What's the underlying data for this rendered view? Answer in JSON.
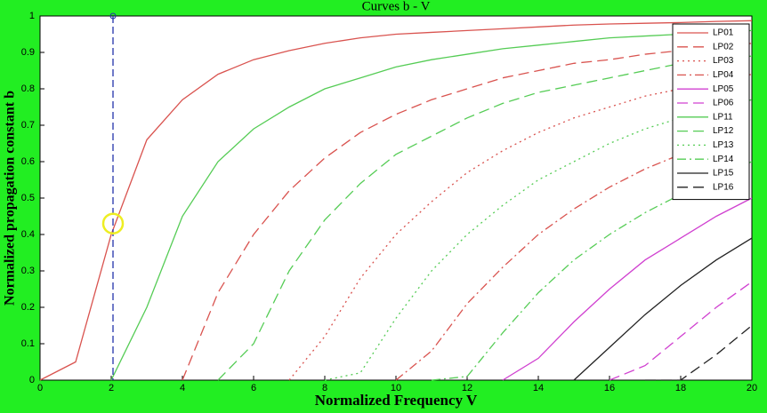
{
  "chart_data": {
    "type": "line",
    "title": "Curves b - V",
    "xlabel": "Normalized Frequency V",
    "ylabel": "Normalized propagation constant b",
    "x": [
      0,
      1,
      2,
      3,
      4,
      5,
      6,
      7,
      8,
      9,
      10,
      11,
      12,
      13,
      14,
      15,
      16,
      17,
      18,
      19,
      20
    ],
    "xlim": [
      0,
      20
    ],
    "ylim": [
      0,
      1
    ],
    "xticks": [
      0,
      2,
      4,
      6,
      8,
      10,
      12,
      14,
      16,
      18,
      20
    ],
    "yticks": [
      0,
      0.1,
      0.2,
      0.3,
      0.4,
      0.5,
      0.6,
      0.7,
      0.8,
      0.9,
      1
    ],
    "grid": false,
    "legend": "upper right",
    "series": [
      {
        "name": "LP01",
        "color": "#d9534f",
        "style": "solid",
        "values": [
          0,
          0.05,
          0.4,
          0.66,
          0.77,
          0.84,
          0.88,
          0.905,
          0.925,
          0.94,
          0.95,
          0.955,
          0.96,
          0.965,
          0.97,
          0.975,
          0.978,
          0.98,
          0.982,
          0.985,
          0.987
        ]
      },
      {
        "name": "LP02",
        "color": "#d9534f",
        "style": "dashed",
        "values": [
          null,
          null,
          null,
          null,
          0,
          0.24,
          0.4,
          0.52,
          0.61,
          0.68,
          0.73,
          0.77,
          0.8,
          0.83,
          0.85,
          0.87,
          0.88,
          0.895,
          0.905,
          0.915,
          0.925
        ]
      },
      {
        "name": "LP03",
        "color": "#d9534f",
        "style": "dotted",
        "values": [
          null,
          null,
          null,
          null,
          null,
          null,
          null,
          0,
          0.12,
          0.28,
          0.4,
          0.49,
          0.57,
          0.63,
          0.68,
          0.72,
          0.75,
          0.78,
          0.8,
          0.82,
          0.84
        ]
      },
      {
        "name": "LP04",
        "color": "#d9534f",
        "style": "dashdot",
        "values": [
          null,
          null,
          null,
          null,
          null,
          null,
          null,
          null,
          null,
          null,
          0,
          0.08,
          0.21,
          0.31,
          0.4,
          0.47,
          0.53,
          0.58,
          0.62,
          0.66,
          0.69
        ]
      },
      {
        "name": "LP05",
        "color": "#d040d0",
        "style": "solid",
        "values": [
          null,
          null,
          null,
          null,
          null,
          null,
          null,
          null,
          null,
          null,
          null,
          null,
          null,
          0,
          0.06,
          0.16,
          0.25,
          0.33,
          0.39,
          0.45,
          0.5
        ]
      },
      {
        "name": "LP06",
        "color": "#d040d0",
        "style": "dashed",
        "values": [
          null,
          null,
          null,
          null,
          null,
          null,
          null,
          null,
          null,
          null,
          null,
          null,
          null,
          null,
          null,
          null,
          0,
          0.04,
          0.12,
          0.2,
          0.27
        ]
      },
      {
        "name": "LP11",
        "color": "#55cc55",
        "style": "solid",
        "values": [
          null,
          null,
          0,
          0.2,
          0.45,
          0.6,
          0.69,
          0.75,
          0.8,
          0.83,
          0.86,
          0.88,
          0.895,
          0.91,
          0.92,
          0.93,
          0.94,
          0.945,
          0.95,
          0.955,
          0.96
        ]
      },
      {
        "name": "LP12",
        "color": "#55cc55",
        "style": "dashed",
        "values": [
          null,
          null,
          null,
          null,
          null,
          0,
          0.1,
          0.3,
          0.44,
          0.54,
          0.62,
          0.67,
          0.72,
          0.76,
          0.79,
          0.81,
          0.83,
          0.85,
          0.87,
          0.88,
          0.89
        ]
      },
      {
        "name": "LP13",
        "color": "#55cc55",
        "style": "dotted",
        "values": [
          null,
          null,
          null,
          null,
          null,
          null,
          null,
          null,
          0,
          0.02,
          0.17,
          0.3,
          0.4,
          0.48,
          0.55,
          0.6,
          0.65,
          0.69,
          0.72,
          0.75,
          0.77
        ]
      },
      {
        "name": "LP14",
        "color": "#55cc55",
        "style": "dashdot",
        "values": [
          null,
          null,
          null,
          null,
          null,
          null,
          null,
          null,
          null,
          null,
          null,
          0,
          0.01,
          0.13,
          0.24,
          0.33,
          0.4,
          0.46,
          0.51,
          0.56,
          0.6
        ]
      },
      {
        "name": "LP15",
        "color": "#222222",
        "style": "solid",
        "values": [
          null,
          null,
          null,
          null,
          null,
          null,
          null,
          null,
          null,
          null,
          null,
          null,
          null,
          null,
          null,
          0,
          0.09,
          0.18,
          0.26,
          0.33,
          0.39
        ]
      },
      {
        "name": "LP16",
        "color": "#222222",
        "style": "dashed",
        "values": [
          null,
          null,
          null,
          null,
          null,
          null,
          null,
          null,
          null,
          null,
          null,
          null,
          null,
          null,
          null,
          null,
          null,
          0,
          0,
          0.07,
          0.15
        ]
      }
    ],
    "annotations": {
      "vline_x": 2.05,
      "circle": {
        "x": 2.05,
        "y": 0.43
      }
    }
  }
}
